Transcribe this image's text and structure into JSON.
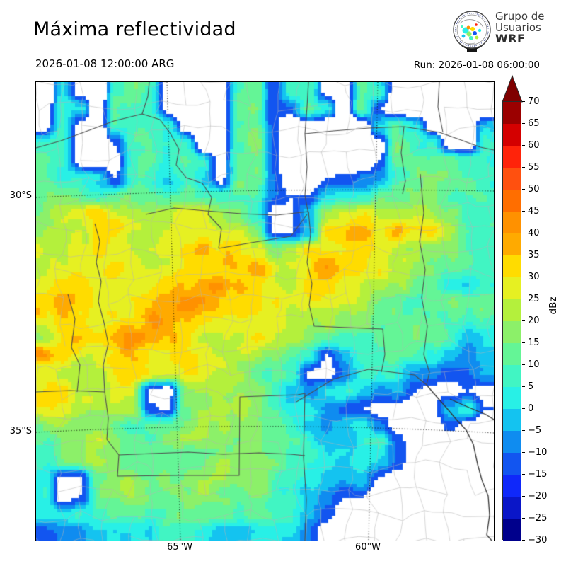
{
  "header": {
    "title": "Máxima reflectividad",
    "valid_time": "2026-01-08 12:00:00 ARG",
    "run_time": "Run: 2026-01-08 06:00:00",
    "logo": {
      "line1": "Grupo de",
      "line2": "Usuarios",
      "line3": "WRF"
    }
  },
  "axes": {
    "lat_labels": [
      "30°S",
      "35°S"
    ],
    "lon_labels": [
      "65°W",
      "60°W"
    ]
  },
  "colorbar": {
    "label": "dBz",
    "ticks": [
      "70",
      "65",
      "60",
      "55",
      "50",
      "45",
      "40",
      "35",
      "30",
      "25",
      "20",
      "15",
      "10",
      "5",
      "0",
      "−5",
      "−10",
      "−15",
      "−20",
      "−25",
      "−30"
    ],
    "bin_min": -30,
    "bin_max": 70,
    "bin_size": 5,
    "colors": [
      "#00008c",
      "#0a16c8",
      "#0f28fa",
      "#1255f0",
      "#0f8cf0",
      "#14c3f0",
      "#28f0e6",
      "#41f5c3",
      "#64f596",
      "#8cf069",
      "#b4f03c",
      "#e6f022",
      "#ffdc00",
      "#ffaa00",
      "#ff9100",
      "#ff6e00",
      "#ff500f",
      "#ff230a",
      "#d40000",
      "#9b0000"
    ],
    "over_color": "#7f0000"
  },
  "map_style": {
    "background": "#ffffff",
    "province_line": "#4d4d4d",
    "coast_line": "#333333",
    "department_line": "#b5b5b5",
    "graticule": "#000000"
  },
  "chart_data": {
    "type": "heatmap",
    "title": "Máxima reflectividad",
    "units": "dBz",
    "value_range": [
      -30,
      70
    ],
    "visible_threshold_dbz": -15,
    "grid_cols": 26,
    "grid_rows": 26,
    "values": [
      [
        -30,
        0,
        -20,
        -30,
        8,
        10,
        5,
        -20,
        -30,
        -30,
        -25,
        10,
        12,
        -15,
        5,
        8,
        -20,
        -25,
        8,
        5,
        -25,
        -30,
        -30,
        -30,
        -30,
        -30
      ],
      [
        -25,
        8,
        3,
        -25,
        10,
        12,
        8,
        -20,
        -30,
        -25,
        -25,
        8,
        14,
        -15,
        -10,
        10,
        3,
        -25,
        10,
        -15,
        -25,
        -30,
        -25,
        -30,
        -30,
        -30
      ],
      [
        -20,
        10,
        -20,
        -25,
        5,
        8,
        10,
        5,
        -20,
        -30,
        -25,
        5,
        15,
        -12,
        -25,
        -20,
        -25,
        -30,
        -25,
        0,
        8,
        5,
        -20,
        -25,
        -25,
        0
      ],
      [
        5,
        8,
        -20,
        -25,
        -15,
        10,
        12,
        8,
        5,
        -25,
        -25,
        8,
        16,
        -12,
        -25,
        -25,
        -25,
        -30,
        -25,
        -20,
        12,
        10,
        5,
        -20,
        -25,
        3
      ],
      [
        10,
        5,
        -18,
        -22,
        -20,
        5,
        10,
        5,
        8,
        3,
        -22,
        10,
        15,
        -12,
        -25,
        -25,
        -25,
        -28,
        -25,
        -15,
        10,
        12,
        8,
        10,
        5,
        3
      ],
      [
        12,
        3,
        5,
        3,
        -15,
        3,
        8,
        3,
        5,
        0,
        -18,
        12,
        12,
        -10,
        -22,
        -22,
        -15,
        -12,
        -8,
        -5,
        8,
        10,
        12,
        12,
        8,
        5
      ],
      [
        15,
        12,
        10,
        8,
        10,
        12,
        12,
        10,
        12,
        10,
        8,
        14,
        12,
        -10,
        -15,
        -15,
        0,
        3,
        10,
        12,
        15,
        15,
        14,
        12,
        10,
        8
      ],
      [
        18,
        22,
        25,
        28,
        25,
        24,
        22,
        25,
        27,
        26,
        24,
        18,
        10,
        -18,
        -16,
        -5,
        18,
        28,
        30,
        26,
        24,
        22,
        20,
        16,
        12,
        10
      ],
      [
        20,
        25,
        27,
        33,
        35,
        28,
        26,
        28,
        32,
        30,
        27,
        24,
        18,
        -16,
        -16,
        0,
        36,
        34,
        33,
        28,
        37,
        30,
        32,
        25,
        15,
        12
      ],
      [
        22,
        26,
        30,
        38,
        30,
        30,
        28,
        30,
        33,
        38,
        30,
        28,
        26,
        15,
        25,
        34,
        33,
        32,
        30,
        28,
        25,
        22,
        18,
        15,
        12,
        10
      ],
      [
        20,
        25,
        28,
        30,
        36,
        32,
        28,
        28,
        30,
        32,
        30,
        34,
        36,
        30,
        28,
        30,
        34,
        32,
        30,
        25,
        22,
        18,
        15,
        10,
        8,
        10
      ],
      [
        24,
        28,
        30,
        28,
        30,
        30,
        30,
        32,
        34,
        36,
        38,
        32,
        30,
        28,
        28,
        30,
        28,
        26,
        25,
        22,
        20,
        15,
        12,
        2,
        0,
        8
      ],
      [
        28,
        36,
        30,
        32,
        32,
        33,
        32,
        33,
        38,
        36,
        32,
        30,
        28,
        28,
        26,
        25,
        24,
        22,
        20,
        18,
        16,
        14,
        12,
        10,
        8,
        12
      ],
      [
        28,
        30,
        30,
        32,
        33,
        34,
        38,
        35,
        32,
        30,
        28,
        27,
        26,
        26,
        24,
        20,
        18,
        16,
        15,
        14,
        15,
        13,
        10,
        5,
        5,
        8
      ],
      [
        26,
        28,
        30,
        32,
        40,
        42,
        36,
        32,
        30,
        28,
        27,
        26,
        24,
        20,
        16,
        12,
        10,
        8,
        8,
        10,
        14,
        16,
        10,
        3,
        -5,
        3
      ],
      [
        45,
        32,
        28,
        30,
        33,
        34,
        30,
        28,
        28,
        27,
        26,
        24,
        20,
        16,
        12,
        6,
        -16,
        -5,
        8,
        10,
        12,
        14,
        5,
        -5,
        -8,
        0
      ],
      [
        30,
        28,
        26,
        28,
        30,
        30,
        28,
        26,
        27,
        25,
        24,
        20,
        16,
        12,
        8,
        -16,
        -20,
        -8,
        5,
        5,
        3,
        -3,
        -8,
        -12,
        -10,
        -5
      ],
      [
        30,
        35,
        26,
        25,
        24,
        22,
        -18,
        -20,
        18,
        22,
        22,
        20,
        15,
        10,
        3,
        -8,
        5,
        8,
        0,
        -8,
        -3,
        -15,
        -18,
        -20,
        -15,
        -18
      ],
      [
        26,
        28,
        24,
        22,
        20,
        18,
        -14,
        -16,
        18,
        22,
        26,
        22,
        15,
        10,
        8,
        3,
        -5,
        -12,
        -15,
        -18,
        -20,
        -20,
        -18,
        0,
        3,
        -15
      ],
      [
        18,
        20,
        18,
        16,
        14,
        12,
        10,
        12,
        16,
        20,
        24,
        18,
        12,
        8,
        5,
        0,
        -5,
        3,
        5,
        -10,
        -18,
        -22,
        -22,
        -12,
        -18,
        -22
      ],
      [
        14,
        16,
        18,
        20,
        16,
        14,
        12,
        14,
        16,
        18,
        20,
        16,
        12,
        10,
        8,
        5,
        3,
        0,
        5,
        3,
        -12,
        -20,
        -25,
        -22,
        -25,
        -25
      ],
      [
        10,
        14,
        18,
        22,
        18,
        16,
        14,
        16,
        18,
        20,
        22,
        18,
        14,
        10,
        8,
        5,
        3,
        -3,
        3,
        0,
        -10,
        -22,
        -28,
        -25,
        -28,
        -28
      ],
      [
        5,
        -18,
        -16,
        12,
        16,
        18,
        16,
        18,
        20,
        22,
        20,
        18,
        12,
        8,
        5,
        3,
        0,
        -5,
        -2,
        -16,
        -20,
        -25,
        -30,
        -28,
        -30,
        -30
      ],
      [
        6,
        -20,
        -15,
        10,
        12,
        15,
        14,
        16,
        18,
        20,
        16,
        12,
        10,
        8,
        6,
        0,
        -8,
        -15,
        -15,
        -20,
        -28,
        -30,
        -30,
        -30,
        -30,
        -30
      ],
      [
        2,
        0,
        3,
        6,
        8,
        10,
        10,
        12,
        12,
        12,
        10,
        8,
        8,
        6,
        4,
        -3,
        -12,
        -20,
        -25,
        -28,
        -30,
        -30,
        -30,
        -30,
        -30,
        -30
      ],
      [
        -12,
        -10,
        -8,
        -2,
        0,
        2,
        0,
        3,
        2,
        0,
        -3,
        -3,
        -2,
        0,
        -2,
        -10,
        -20,
        -28,
        -30,
        -30,
        -30,
        -30,
        -30,
        -30,
        -30,
        -30
      ]
    ]
  }
}
